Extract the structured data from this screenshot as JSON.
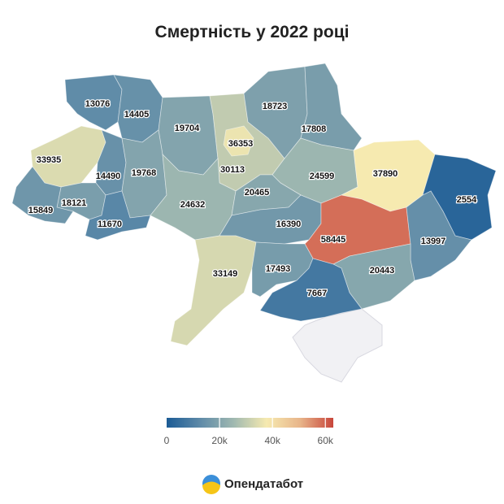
{
  "chart_data": {
    "type": "choropleth",
    "title": "Смертність у 2022 році",
    "values": [
      13076,
      14405,
      19704,
      36353,
      30113,
      18723,
      17808,
      33935,
      14490,
      19768,
      24599,
      37890,
      2554,
      18121,
      15849,
      11670,
      24632,
      20465,
      16390,
      58445,
      13997,
      33149,
      17493,
      20443,
      7667
    ],
    "colorscale": {
      "lim": [
        0,
        63000
      ],
      "ticks": [
        0,
        {
          "value": 20000,
          "label": "20k"
        },
        {
          "value": 40000,
          "label": "40k"
        },
        {
          "value": 60000,
          "label": "60k"
        }
      ],
      "colors": [
        "#1b5b95",
        "#5e8aa8",
        "#9fb8b0",
        "#f6eab0",
        "#e8b58a",
        "#c8463b"
      ]
    }
  },
  "brand": "Опендатабот"
}
